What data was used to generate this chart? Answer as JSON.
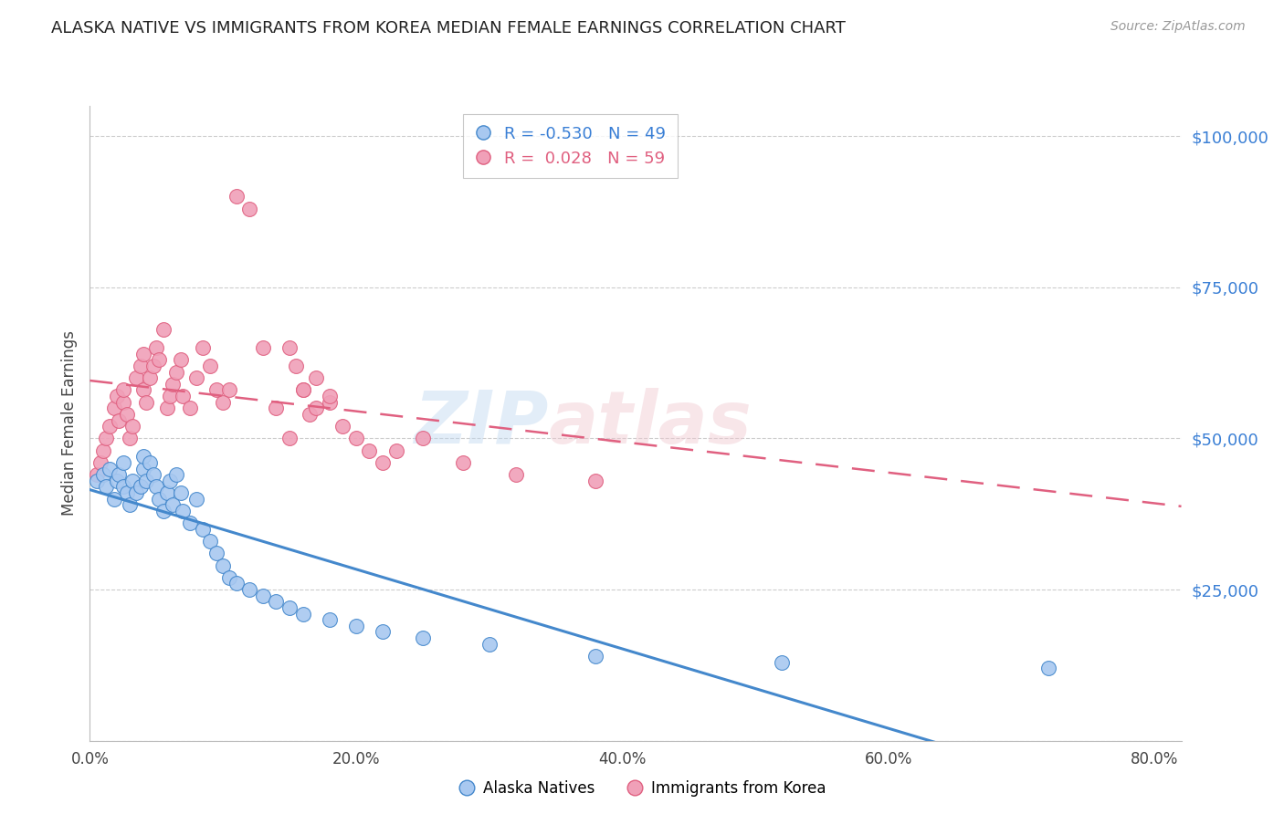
{
  "title": "ALASKA NATIVE VS IMMIGRANTS FROM KOREA MEDIAN FEMALE EARNINGS CORRELATION CHART",
  "source": "Source: ZipAtlas.com",
  "ylabel": "Median Female Earnings",
  "xlabel_ticks": [
    "0.0%",
    "20.0%",
    "40.0%",
    "60.0%",
    "80.0%"
  ],
  "xlabel_vals": [
    0.0,
    0.2,
    0.4,
    0.6,
    0.8
  ],
  "ylabel_ticks": [
    0,
    25000,
    50000,
    75000,
    100000
  ],
  "ylabel_labels": [
    "",
    "$25,000",
    "$50,000",
    "$75,000",
    "$100,000"
  ],
  "xlim": [
    0.0,
    0.82
  ],
  "ylim": [
    0,
    105000
  ],
  "blue_R": -0.53,
  "blue_N": 49,
  "pink_R": 0.028,
  "pink_N": 59,
  "legend_label_blue": "Alaska Natives",
  "legend_label_pink": "Immigrants from Korea",
  "blue_color": "#a8c8f0",
  "pink_color": "#f0a0b8",
  "blue_line_color": "#4488cc",
  "pink_line_color": "#e06080",
  "watermark_1": "ZIP",
  "watermark_2": "atlas",
  "blue_x": [
    0.005,
    0.01,
    0.012,
    0.015,
    0.018,
    0.02,
    0.022,
    0.025,
    0.025,
    0.028,
    0.03,
    0.032,
    0.035,
    0.038,
    0.04,
    0.04,
    0.042,
    0.045,
    0.048,
    0.05,
    0.052,
    0.055,
    0.058,
    0.06,
    0.062,
    0.065,
    0.068,
    0.07,
    0.075,
    0.08,
    0.085,
    0.09,
    0.095,
    0.1,
    0.105,
    0.11,
    0.12,
    0.13,
    0.14,
    0.15,
    0.16,
    0.18,
    0.2,
    0.22,
    0.25,
    0.3,
    0.38,
    0.52,
    0.72
  ],
  "blue_y": [
    43000,
    44000,
    42000,
    45000,
    40000,
    43000,
    44000,
    42000,
    46000,
    41000,
    39000,
    43000,
    41000,
    42000,
    45000,
    47000,
    43000,
    46000,
    44000,
    42000,
    40000,
    38000,
    41000,
    43000,
    39000,
    44000,
    41000,
    38000,
    36000,
    40000,
    35000,
    33000,
    31000,
    29000,
    27000,
    26000,
    25000,
    24000,
    23000,
    22000,
    21000,
    20000,
    19000,
    18000,
    17000,
    16000,
    14000,
    13000,
    12000
  ],
  "pink_x": [
    0.005,
    0.008,
    0.01,
    0.012,
    0.015,
    0.018,
    0.02,
    0.022,
    0.025,
    0.025,
    0.028,
    0.03,
    0.032,
    0.035,
    0.038,
    0.04,
    0.04,
    0.042,
    0.045,
    0.048,
    0.05,
    0.052,
    0.055,
    0.058,
    0.06,
    0.062,
    0.065,
    0.068,
    0.07,
    0.075,
    0.08,
    0.085,
    0.09,
    0.095,
    0.1,
    0.105,
    0.11,
    0.12,
    0.13,
    0.14,
    0.15,
    0.155,
    0.16,
    0.165,
    0.17,
    0.18,
    0.19,
    0.2,
    0.21,
    0.22,
    0.15,
    0.16,
    0.17,
    0.18,
    0.23,
    0.25,
    0.28,
    0.32,
    0.38
  ],
  "pink_y": [
    44000,
    46000,
    48000,
    50000,
    52000,
    55000,
    57000,
    53000,
    56000,
    58000,
    54000,
    50000,
    52000,
    60000,
    62000,
    58000,
    64000,
    56000,
    60000,
    62000,
    65000,
    63000,
    68000,
    55000,
    57000,
    59000,
    61000,
    63000,
    57000,
    55000,
    60000,
    65000,
    62000,
    58000,
    56000,
    58000,
    90000,
    88000,
    65000,
    55000,
    50000,
    62000,
    58000,
    54000,
    60000,
    56000,
    52000,
    50000,
    48000,
    46000,
    65000,
    58000,
    55000,
    57000,
    48000,
    50000,
    46000,
    44000,
    43000
  ]
}
